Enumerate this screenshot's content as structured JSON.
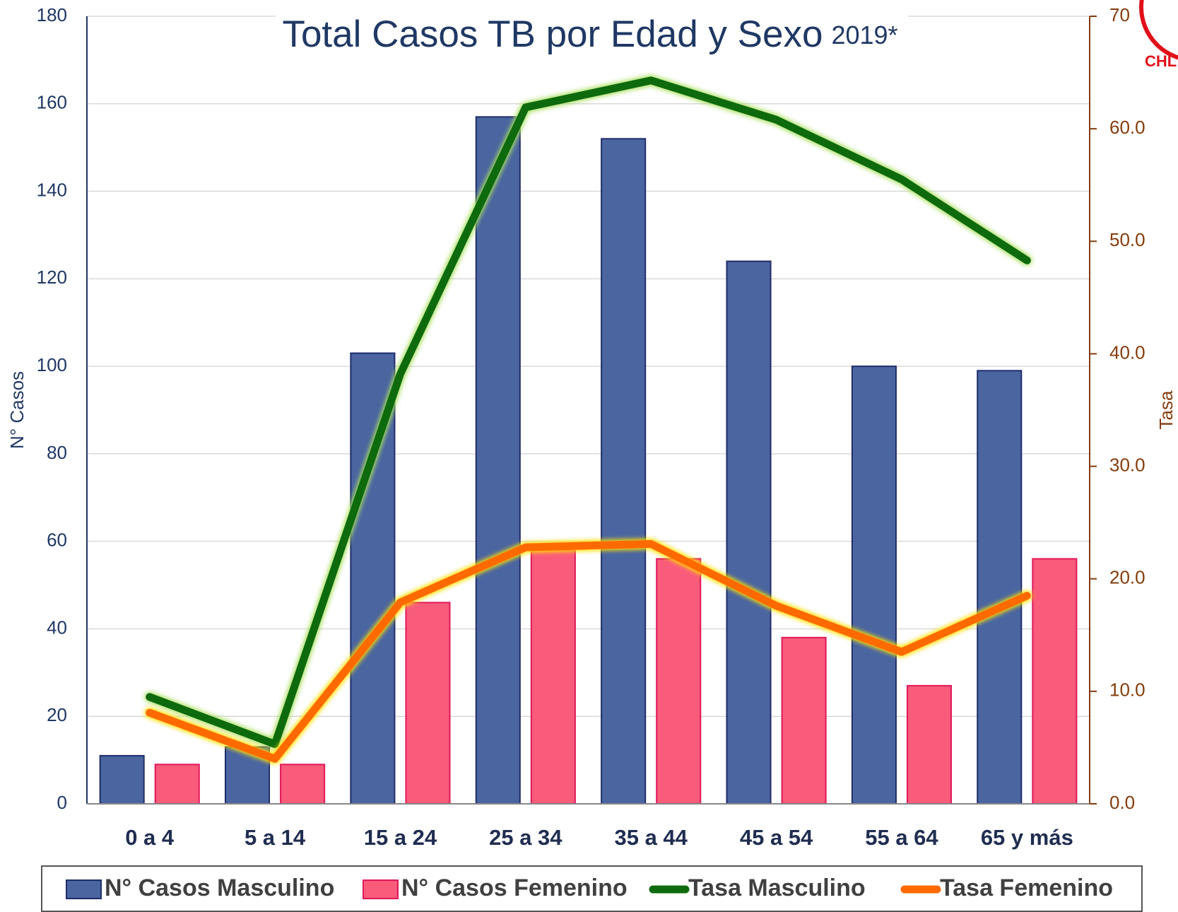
{
  "chart_data": {
    "type": "bar_line",
    "title": "Total Casos TB por Edad y Sexo",
    "title_suffix": "2019*",
    "logo_text": "CHL",
    "y_label": "N° Casos",
    "y2_label": "Tasa",
    "categories": [
      "0 a 4",
      "5 a 14",
      "15 a 24",
      "25 a 34",
      "35 a 44",
      "45 a 54",
      "55 a 64",
      "65 y más"
    ],
    "series": [
      {
        "name": "N° Casos Masculino",
        "type": "bar",
        "color": "#4a65a0",
        "values": [
          11,
          13,
          103,
          157,
          152,
          124,
          100,
          99
        ]
      },
      {
        "name": "N° Casos Femenino",
        "type": "bar",
        "color": "#f95b7a",
        "values": [
          9,
          9,
          46,
          58,
          56,
          38,
          27,
          56
        ]
      },
      {
        "name": "Tasa  Masculino",
        "type": "line",
        "axis": "y2",
        "color": "#0e6a0e",
        "values": [
          9.5,
          5.3,
          38.2,
          61.9,
          64.3,
          60.8,
          55.5,
          48.3
        ]
      },
      {
        "name": "Tasa Femenino",
        "type": "line",
        "axis": "y2",
        "color": "#ff6a00",
        "values": [
          8.1,
          4.0,
          17.9,
          22.8,
          23.1,
          17.6,
          13.5,
          18.5
        ]
      }
    ],
    "ylim": [
      0,
      180
    ],
    "yticks": [
      0,
      20,
      40,
      60,
      80,
      100,
      120,
      140,
      160,
      180
    ],
    "y2lim": [
      0,
      70
    ],
    "y2ticks": [
      {
        "value": 0,
        "label": "0.0"
      },
      {
        "value": 10,
        "label": "10.0"
      },
      {
        "value": 20,
        "label": "20.0"
      },
      {
        "value": 30,
        "label": "30.0"
      },
      {
        "value": 40,
        "label": "40.0"
      },
      {
        "value": 50,
        "label": "50.0"
      },
      {
        "value": 60,
        "label": "60.0"
      },
      {
        "value": 70,
        "label": "70"
      }
    ],
    "grid": true
  }
}
